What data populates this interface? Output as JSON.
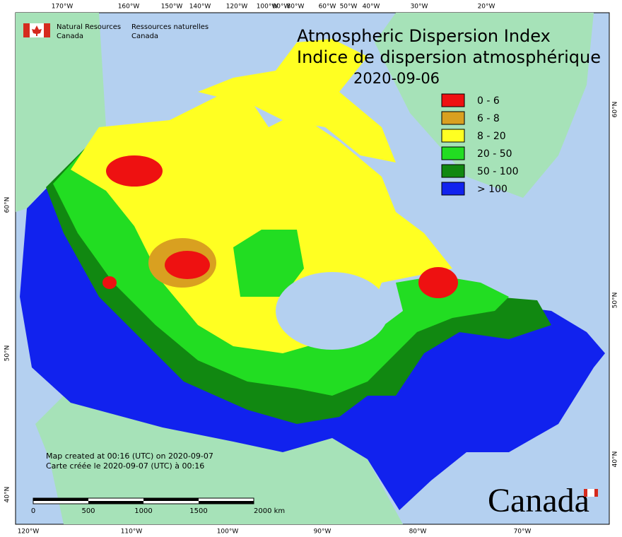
{
  "header": {
    "title": "Atmospheric Dispersion Index",
    "subtitle": "Indice de dispersion atmosphérique",
    "date": "2020-09-06"
  },
  "logo": {
    "english": [
      "Natural Resources",
      "Canada"
    ],
    "french": [
      "Ressources naturelles",
      "Canada"
    ]
  },
  "legend": {
    "items": [
      {
        "label": "0 - 6",
        "color": "#ee1111"
      },
      {
        "label": "6 - 8",
        "color": "#d9a020"
      },
      {
        "label": "8 - 20",
        "color": "#ffff22"
      },
      {
        "label": "20 - 50",
        "color": "#22dd22"
      },
      {
        "label": "50 - 100",
        "color": "#118811"
      },
      {
        "label": "> 100",
        "color": "#1122ee"
      }
    ]
  },
  "graticule": {
    "top": [
      "170°W",
      "160°W",
      "150°W",
      "140°W",
      "120°W",
      "100°W",
      "90°W",
      "80°W",
      "60°W",
      "50°W",
      "40°W",
      "30°W",
      "20°W"
    ],
    "bottom": [
      "120°W",
      "110°W",
      "100°W",
      "90°W",
      "80°W",
      "70°W"
    ],
    "left": [
      "60°N",
      "50°N",
      "40°N"
    ],
    "right": [
      "60°N",
      "50°N",
      "40°N"
    ]
  },
  "notes": [
    "Map created at 00:16 (UTC) on 2020-09-07",
    "Carte créée le 2020-09-07 (UTC) à 00:16"
  ],
  "scale_bar": {
    "labels": [
      "0",
      "500",
      "1000",
      "1500",
      "2000 km"
    ]
  },
  "wordmark": "Canada"
}
